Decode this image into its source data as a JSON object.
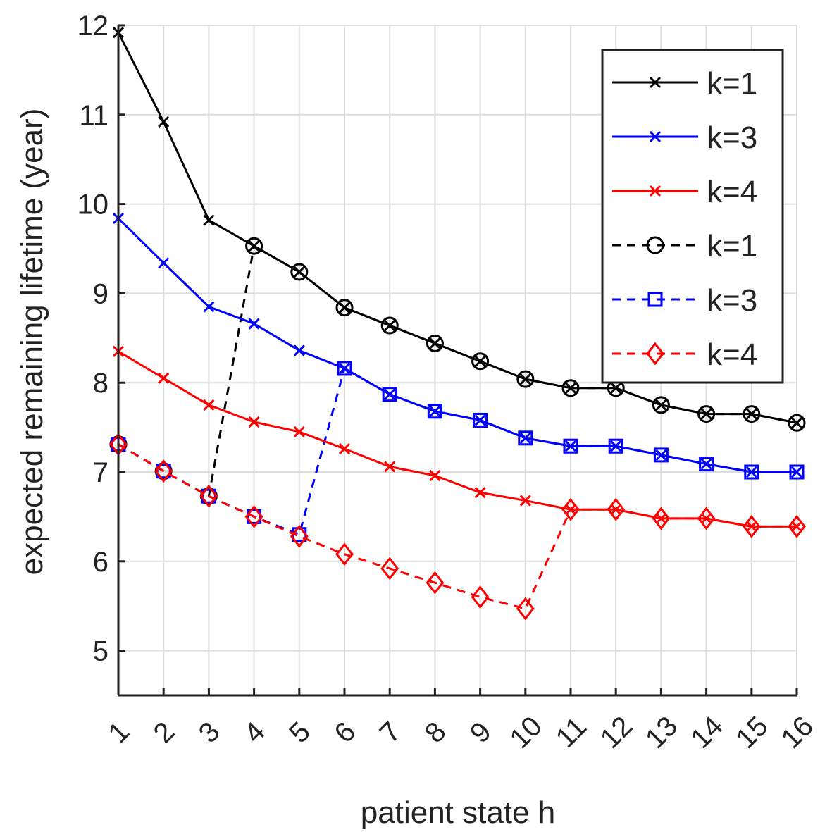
{
  "chart_data": {
    "type": "line",
    "title": "",
    "xlabel": "patient state h",
    "ylabel": "expected remaining lifetime (year)",
    "x": [
      1,
      2,
      3,
      4,
      5,
      6,
      7,
      8,
      9,
      10,
      11,
      12,
      13,
      14,
      15,
      16
    ],
    "xticks": [
      "1",
      "2",
      "3",
      "4",
      "5",
      "6",
      "7",
      "8",
      "9",
      "10",
      "11",
      "12",
      "13",
      "14",
      "15",
      "16"
    ],
    "xlim": [
      1,
      16
    ],
    "ylim": [
      4.5,
      12
    ],
    "yticks": [
      5,
      6,
      7,
      8,
      9,
      10,
      11,
      12
    ],
    "grid": true,
    "legend_position": "top-right",
    "series": [
      {
        "name": "k=1",
        "color": "#000000",
        "dash": "solid",
        "marker": "x",
        "values": [
          11.92,
          10.92,
          9.82,
          9.53,
          9.24,
          8.84,
          8.64,
          8.44,
          8.24,
          8.04,
          7.94,
          7.94,
          7.75,
          7.65,
          7.65,
          7.55
        ]
      },
      {
        "name": "k=3",
        "color": "#0000ff",
        "dash": "solid",
        "marker": "x",
        "values": [
          9.84,
          9.34,
          8.85,
          8.66,
          8.36,
          8.16,
          7.87,
          7.68,
          7.58,
          7.38,
          7.29,
          7.29,
          7.19,
          7.09,
          7.0,
          7.0
        ]
      },
      {
        "name": "k=4",
        "color": "#ff0000",
        "dash": "solid",
        "marker": "x",
        "values": [
          8.35,
          8.05,
          7.75,
          7.56,
          7.45,
          7.26,
          7.06,
          6.96,
          6.77,
          6.68,
          6.58,
          6.58,
          6.48,
          6.48,
          6.39,
          6.39
        ]
      },
      {
        "name": "k=1",
        "color": "#000000",
        "dash": "dashed",
        "marker": "o",
        "x": [
          1,
          2,
          3,
          4,
          5,
          6,
          7,
          8,
          9,
          10,
          11,
          12,
          13,
          14,
          15,
          16
        ],
        "values": [
          7.31,
          7.01,
          6.73,
          9.53,
          9.24,
          8.84,
          8.64,
          8.44,
          8.24,
          8.04,
          7.94,
          7.94,
          7.75,
          7.65,
          7.65,
          7.55
        ],
        "marker_on": [
          1,
          2,
          3,
          4,
          5,
          6,
          7,
          8,
          9,
          10,
          11,
          12,
          13,
          14,
          15,
          16
        ],
        "line_segment": [
          1,
          4
        ]
      },
      {
        "name": "k=3",
        "color": "#0000ff",
        "dash": "dashed",
        "marker": "square",
        "x": [
          1,
          2,
          3,
          4,
          5,
          6,
          7,
          8,
          9,
          10,
          11,
          12,
          13,
          14,
          15,
          16
        ],
        "values": [
          7.31,
          7.01,
          6.73,
          6.5,
          6.3,
          8.16,
          7.87,
          7.68,
          7.58,
          7.38,
          7.29,
          7.29,
          7.19,
          7.09,
          7.0,
          7.0
        ],
        "marker_on": [
          1,
          2,
          3,
          4,
          5,
          6,
          7,
          8,
          9,
          10,
          11,
          12,
          13,
          14,
          15,
          16
        ],
        "line_segment": [
          1,
          6
        ]
      },
      {
        "name": "k=4",
        "color": "#ff0000",
        "dash": "dashed",
        "marker": "diamond",
        "x": [
          1,
          2,
          3,
          4,
          5,
          6,
          7,
          8,
          9,
          10,
          11,
          12,
          13,
          14,
          15,
          16
        ],
        "values": [
          7.31,
          7.01,
          6.73,
          6.5,
          6.28,
          6.08,
          5.92,
          5.76,
          5.6,
          5.47,
          6.58,
          6.58,
          6.48,
          6.48,
          6.39,
          6.39
        ],
        "marker_on": [
          1,
          2,
          3,
          4,
          5,
          6,
          7,
          8,
          9,
          10,
          11,
          12,
          13,
          14,
          15,
          16
        ],
        "line_segment": [
          1,
          11
        ]
      }
    ]
  }
}
